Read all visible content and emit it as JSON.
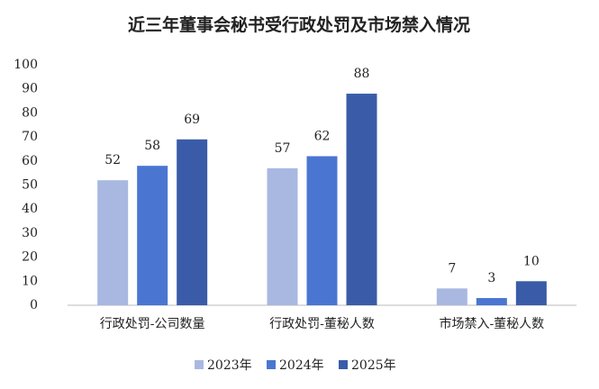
{
  "chart_data": {
    "type": "bar",
    "title": "近三年董事会秘书受行政处罚及市场禁入情况",
    "categories": [
      "行政处罚-公司数量",
      "行政处罚-董秘人数",
      "市场禁入-董秘人数"
    ],
    "series": [
      {
        "name": "2023年",
        "color": "#a9b8e1",
        "values": [
          52,
          57,
          7
        ]
      },
      {
        "name": "2024年",
        "color": "#4a76d2",
        "values": [
          58,
          62,
          3
        ]
      },
      {
        "name": "2025年",
        "color": "#3a5ca8",
        "values": [
          69,
          88,
          10
        ]
      }
    ],
    "ylim": [
      0,
      100
    ],
    "yticks": [
      0,
      10,
      20,
      30,
      40,
      50,
      60,
      70,
      80,
      90,
      100
    ],
    "grid": false,
    "legend": "bottom"
  }
}
